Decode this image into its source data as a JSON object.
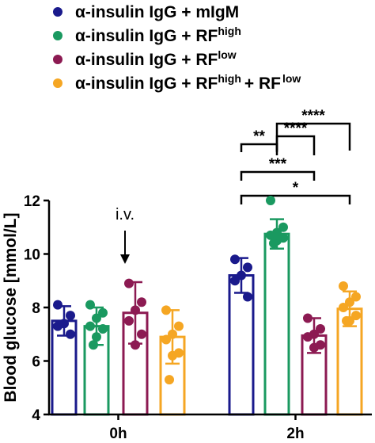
{
  "chart_data": {
    "type": "bar",
    "ylabel": "Blood glucose [mmol/L]",
    "ylim": [
      4,
      12
    ],
    "yticks": [
      4,
      6,
      8,
      10,
      12
    ],
    "categories": [
      "0h",
      "2h"
    ],
    "legend_position": "top-left",
    "series": [
      {
        "name": "α-insulin IgG + mIgM",
        "sup": [],
        "color": "#1a1a8c",
        "values": [
          7.5,
          9.2
        ],
        "sd": [
          0.55,
          0.65
        ],
        "points": [
          [
            8.1,
            7.7,
            7.4,
            7.3,
            7.0
          ],
          [
            9.8,
            9.5,
            9.2,
            9.0,
            8.4
          ]
        ]
      },
      {
        "name": "α-insulin IgG + RF",
        "sup": [
          "high"
        ],
        "color": "#1a9960",
        "values": [
          7.3,
          10.75
        ],
        "sd": [
          0.7,
          0.55
        ],
        "points": [
          [
            8.1,
            7.8,
            7.6,
            7.3,
            7.2,
            6.9,
            6.6
          ],
          [
            12.0,
            11.0,
            10.8,
            10.7,
            10.6,
            10.5,
            10.4
          ]
        ]
      },
      {
        "name": "α-insulin IgG + RF",
        "sup": [
          "low"
        ],
        "color": "#8c1a52",
        "values": [
          7.8,
          6.95
        ],
        "sd": [
          1.15,
          0.65
        ],
        "points": [
          [
            8.9,
            8.2,
            7.9,
            7.5,
            7.0,
            6.6
          ],
          [
            7.6,
            7.2,
            7.0,
            6.9,
            6.6,
            6.5
          ]
        ]
      },
      {
        "name": "α-insulin IgG + RF",
        "sup": [
          "high",
          "low"
        ],
        "color": "#f5a623",
        "values": [
          6.9,
          7.95
        ],
        "sd": [
          1.0,
          0.65
        ],
        "points": [
          [
            7.9,
            7.3,
            7.0,
            6.8,
            6.3,
            6.2,
            5.3
          ],
          [
            8.8,
            8.4,
            8.2,
            8.0,
            7.7,
            7.5,
            7.5
          ]
        ]
      }
    ],
    "annotations": [
      {
        "text": "i.v.",
        "category": "0h",
        "arrow": true
      }
    ],
    "significance": [
      {
        "label": "**",
        "from": 0,
        "to": 1
      },
      {
        "label": "****",
        "from": 1,
        "to": 2
      },
      {
        "label": "****",
        "from": 1,
        "to": 3
      },
      {
        "label": "***",
        "from": 0,
        "to": 2
      },
      {
        "label": "*",
        "from": 0,
        "to": 3
      }
    ]
  }
}
